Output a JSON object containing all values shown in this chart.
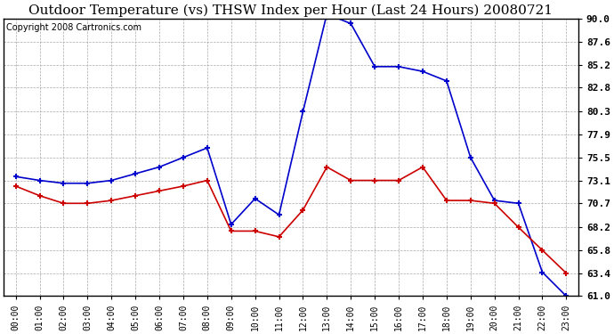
{
  "title": "Outdoor Temperature (vs) THSW Index per Hour (Last 24 Hours) 20080721",
  "copyright": "Copyright 2008 Cartronics.com",
  "hours": [
    "00:00",
    "01:00",
    "02:00",
    "03:00",
    "04:00",
    "05:00",
    "06:00",
    "07:00",
    "08:00",
    "09:00",
    "10:00",
    "11:00",
    "12:00",
    "13:00",
    "14:00",
    "15:00",
    "16:00",
    "17:00",
    "18:00",
    "19:00",
    "20:00",
    "21:00",
    "22:00",
    "23:00"
  ],
  "blue_thsw": [
    73.5,
    73.1,
    72.8,
    72.8,
    73.1,
    73.8,
    74.5,
    75.5,
    76.5,
    68.5,
    71.2,
    69.5,
    80.3,
    90.5,
    89.5,
    85.0,
    85.0,
    84.5,
    83.5,
    75.5,
    71.0,
    70.7,
    63.5,
    61.0
  ],
  "red_temp": [
    72.5,
    71.5,
    70.7,
    70.7,
    71.0,
    71.5,
    72.0,
    72.5,
    73.1,
    67.8,
    67.8,
    67.2,
    70.0,
    74.5,
    73.1,
    73.1,
    73.1,
    74.5,
    71.0,
    71.0,
    70.7,
    68.2,
    65.8,
    63.4
  ],
  "ymin": 61.0,
  "ymax": 90.0,
  "yticks": [
    61.0,
    63.4,
    65.8,
    68.2,
    70.7,
    73.1,
    75.5,
    77.9,
    80.3,
    82.8,
    85.2,
    87.6,
    90.0
  ],
  "blue_color": "#0000CC",
  "red_color": "#CC0000",
  "bg_color": "#FFFFFF",
  "plot_bg_color": "#FFFFFF",
  "grid_color": "#AAAAAA",
  "title_color": "#000000",
  "copyright_color": "#000000",
  "title_fontsize": 11,
  "copyright_fontsize": 7,
  "tick_fontsize": 8,
  "xtick_fontsize": 7
}
